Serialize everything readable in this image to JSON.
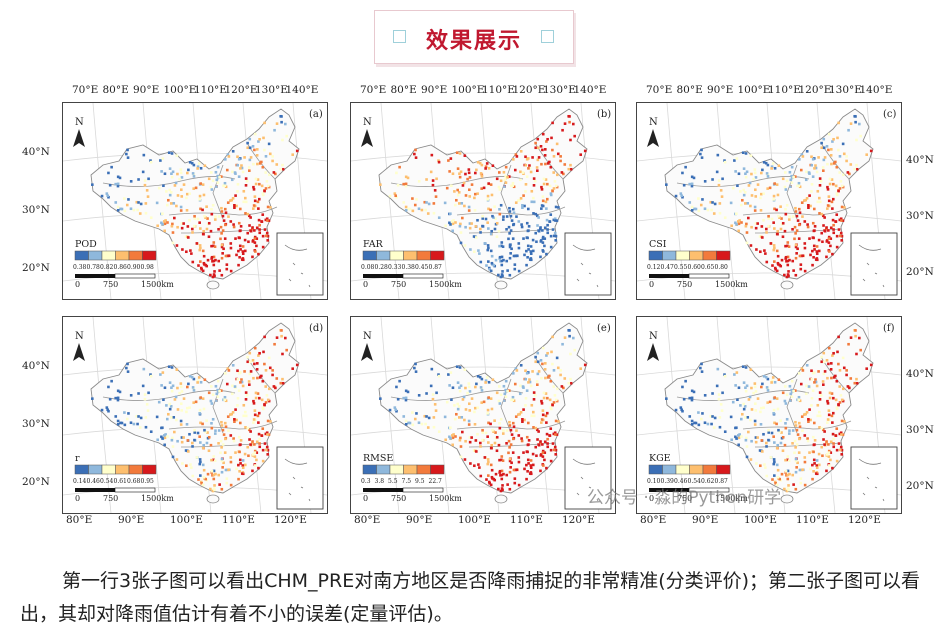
{
  "header": {
    "title": "效果展示",
    "icons": [
      "square-icon",
      "square-icon"
    ]
  },
  "figure": {
    "top_lon_ticks": [
      "70°E",
      "80°E",
      "90°E",
      "100°E",
      "110°E",
      "120°E",
      "130°E",
      "140°E"
    ],
    "bottom_lon_ticks": [
      "80°E",
      "90°E",
      "100°E",
      "110°E",
      "120°E"
    ],
    "left_lat_ticks": [
      "40°N",
      "30°N",
      "20°N"
    ],
    "right_lat_ticks": [
      "40°N",
      "30°N",
      "20°N"
    ],
    "north_label": "N",
    "scale_bar": {
      "labels": [
        "0",
        "750",
        "1500km"
      ]
    },
    "panels": [
      {
        "letter": "(a)",
        "metric": "POD",
        "legend": [
          "0.38",
          "0.78",
          "0.82",
          "0.86",
          "0.90",
          "0.98"
        ],
        "pattern": "south-red"
      },
      {
        "letter": "(b)",
        "metric": "FAR",
        "legend": [
          "0.08",
          "0.28",
          "0.33",
          "0.38",
          "0.45",
          "0.87"
        ],
        "pattern": "north-red"
      },
      {
        "letter": "(c)",
        "metric": "CSI",
        "legend": [
          "0.12",
          "0.47",
          "0.55",
          "0.60",
          "0.65",
          "0.80"
        ],
        "pattern": "south-red"
      },
      {
        "letter": "(d)",
        "metric": "r",
        "legend": [
          "0.14",
          "0.46",
          "0.54",
          "0.61",
          "0.68",
          "0.95"
        ],
        "pattern": "east-red"
      },
      {
        "letter": "(e)",
        "metric": "RMSE",
        "legend": [
          "0.3",
          "3.8",
          "5.5",
          "7.5",
          "9.5",
          "22.7"
        ],
        "pattern": "south-red"
      },
      {
        "letter": "(f)",
        "metric": "KGE",
        "legend": [
          "0.10",
          "0.39",
          "0.46",
          "0.54",
          "0.62",
          "0.87"
        ],
        "pattern": "east-red"
      }
    ],
    "colors": [
      "#3b6fb6",
      "#8fb8dc",
      "#ffffcc",
      "#fdbf6f",
      "#f27a3c",
      "#d7191c"
    ]
  },
  "watermark": "公众号 · 淼的Python研学",
  "caption": "第一行3张子图可以看出CHM_PRE对南方地区是否降雨捕捉的非常精准(分类评价)；第二张子图可以看出，其却对降雨值估计有着不小的误差(定量评估)。"
}
